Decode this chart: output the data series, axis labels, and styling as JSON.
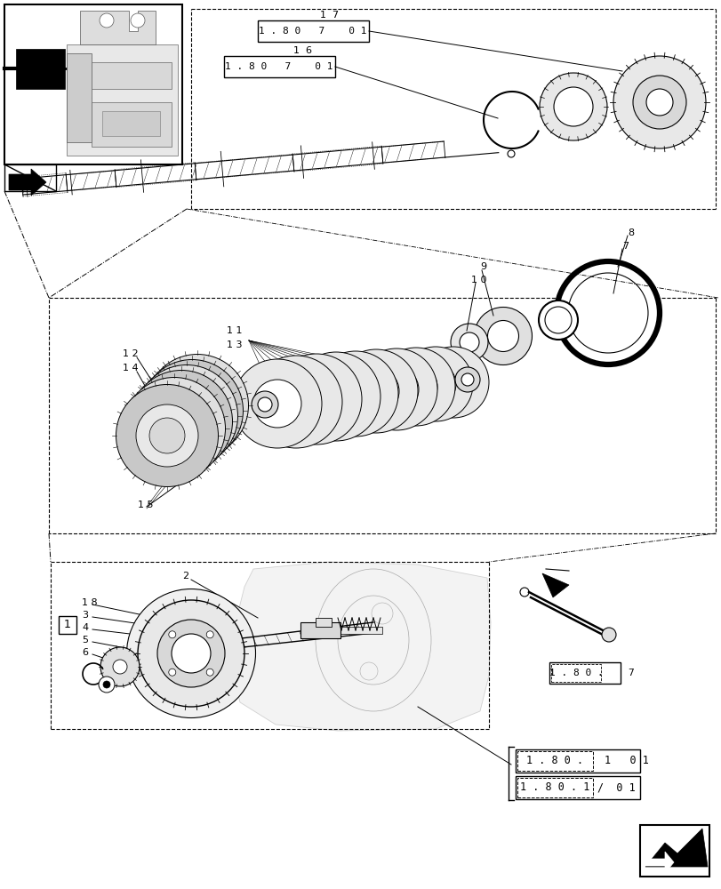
{
  "bg_color": "#ffffff",
  "lc": "#000000",
  "gray_light": "#e8e8e8",
  "gray_med": "#cccccc",
  "gray_dark": "#aaaaaa"
}
